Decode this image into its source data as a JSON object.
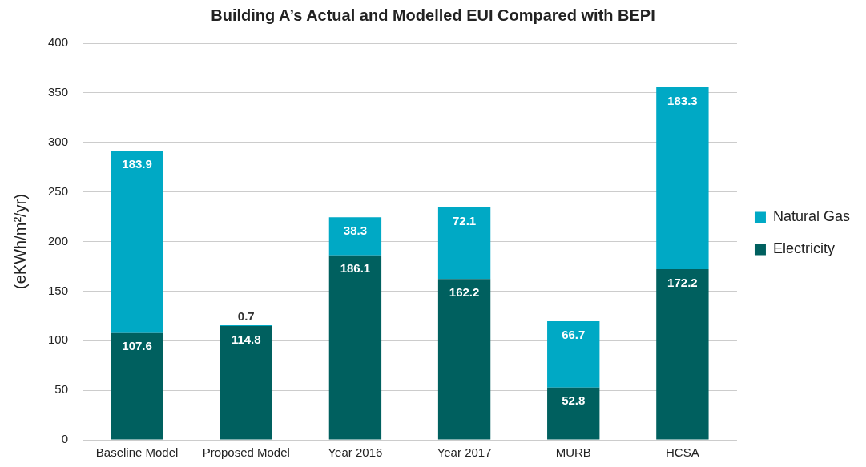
{
  "chart_data": {
    "type": "bar",
    "title": "Building A’s Actual and Modelled EUI Compared with BEPI",
    "ylabel": "(eKWh/m²/yr)",
    "categories": [
      "Baseline Model",
      "Proposed Model",
      "Year 2016",
      "Year 2017",
      "MURB",
      "HCSA"
    ],
    "stacked": true,
    "series": [
      {
        "name": "Electricity",
        "color": "#00605f",
        "values": [
          107.6,
          114.8,
          186.1,
          162.2,
          52.8,
          172.2
        ]
      },
      {
        "name": "Natural Gas",
        "color": "#00a9c5",
        "values": [
          183.9,
          0.7,
          38.3,
          72.1,
          66.7,
          183.3
        ]
      }
    ],
    "ylim": [
      0,
      400
    ],
    "yticks": [
      0,
      50,
      100,
      150,
      200,
      250,
      300,
      350,
      400
    ],
    "grid": "y",
    "legend": "right",
    "data_labels": true
  }
}
